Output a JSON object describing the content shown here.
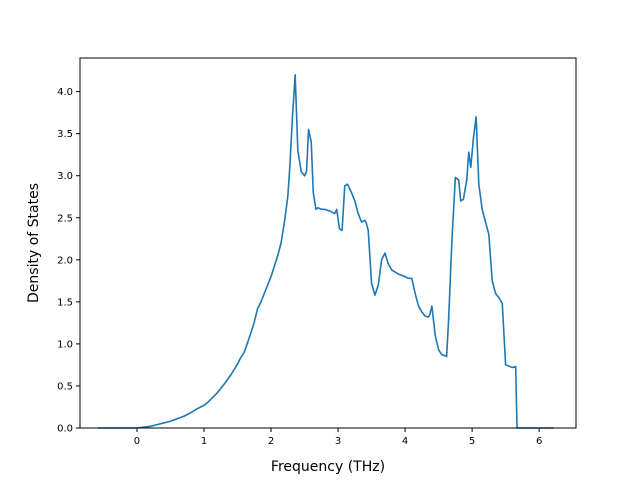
{
  "chart_data": {
    "type": "line",
    "title": "",
    "xlabel": "Frequency (THz)",
    "ylabel": "Density of States",
    "xlim": [
      -0.85,
      6.55
    ],
    "ylim": [
      0.0,
      4.4
    ],
    "grid": false,
    "line_color": "#1f77b4",
    "xticks": [
      0,
      1,
      2,
      3,
      4,
      5,
      6
    ],
    "xtick_labels": [
      "0",
      "1",
      "2",
      "3",
      "4",
      "5",
      "6"
    ],
    "yticks": [
      0.0,
      0.5,
      1.0,
      1.5,
      2.0,
      2.5,
      3.0,
      3.5,
      4.0
    ],
    "ytick_labels": [
      "0.0",
      "0.5",
      "1.0",
      "1.5",
      "2.0",
      "2.5",
      "3.0",
      "3.5",
      "4.0"
    ],
    "series": [
      {
        "x": [
          -0.58,
          -0.3,
          0.0,
          0.1,
          0.2,
          0.3,
          0.4,
          0.5,
          0.6,
          0.7,
          0.8,
          0.9,
          0.95,
          1.0,
          1.05,
          1.1,
          1.2,
          1.3,
          1.4,
          1.5,
          1.55,
          1.6,
          1.7,
          1.75,
          1.8,
          1.85,
          1.9,
          2.0,
          2.1,
          2.15,
          2.2,
          2.25,
          2.28,
          2.32,
          2.36,
          2.4,
          2.45,
          2.5,
          2.53,
          2.56,
          2.6,
          2.63,
          2.67,
          2.7,
          2.75,
          2.8,
          2.88,
          2.95,
          2.98,
          3.02,
          3.06,
          3.1,
          3.14,
          3.2,
          3.25,
          3.3,
          3.35,
          3.4,
          3.42,
          3.45,
          3.5,
          3.55,
          3.6,
          3.65,
          3.7,
          3.75,
          3.8,
          3.9,
          4.0,
          4.05,
          4.1,
          4.15,
          4.2,
          4.25,
          4.3,
          4.35,
          4.37,
          4.4,
          4.45,
          4.5,
          4.55,
          4.6,
          4.62,
          4.65,
          4.7,
          4.75,
          4.8,
          4.83,
          4.87,
          4.92,
          4.95,
          4.98,
          5.02,
          5.06,
          5.1,
          5.15,
          5.25,
          5.3,
          5.35,
          5.4,
          5.45,
          5.5,
          5.6,
          5.65,
          5.67,
          6.22
        ],
        "y": [
          0.0,
          0.0,
          0.0,
          0.01,
          0.02,
          0.04,
          0.06,
          0.08,
          0.11,
          0.14,
          0.18,
          0.23,
          0.25,
          0.27,
          0.3,
          0.34,
          0.42,
          0.52,
          0.63,
          0.76,
          0.84,
          0.9,
          1.13,
          1.26,
          1.42,
          1.5,
          1.6,
          1.8,
          2.05,
          2.2,
          2.45,
          2.75,
          3.1,
          3.7,
          4.2,
          3.3,
          3.05,
          3.0,
          3.05,
          3.55,
          3.4,
          2.8,
          2.6,
          2.62,
          2.6,
          2.6,
          2.58,
          2.55,
          2.6,
          2.37,
          2.35,
          2.88,
          2.9,
          2.8,
          2.7,
          2.55,
          2.45,
          2.47,
          2.44,
          2.35,
          1.72,
          1.58,
          1.7,
          2.0,
          2.08,
          1.95,
          1.88,
          1.83,
          1.8,
          1.78,
          1.78,
          1.6,
          1.45,
          1.38,
          1.33,
          1.32,
          1.35,
          1.45,
          1.1,
          0.93,
          0.87,
          0.86,
          0.85,
          1.3,
          2.25,
          2.98,
          2.95,
          2.7,
          2.72,
          2.95,
          3.28,
          3.1,
          3.45,
          3.7,
          2.9,
          2.6,
          2.3,
          1.75,
          1.6,
          1.55,
          1.48,
          0.75,
          0.72,
          0.73,
          0.0,
          0.0
        ]
      }
    ]
  }
}
